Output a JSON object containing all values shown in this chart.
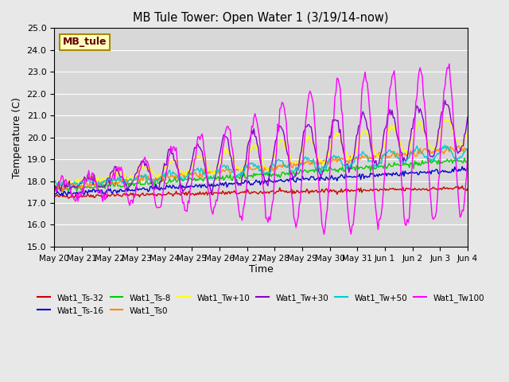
{
  "title": "MB Tule Tower: Open Water 1 (3/19/14-now)",
  "xlabel": "Time",
  "ylabel": "Temperature (C)",
  "ylim": [
    15.0,
    25.0
  ],
  "yticks": [
    15.0,
    16.0,
    17.0,
    18.0,
    19.0,
    20.0,
    21.0,
    22.0,
    23.0,
    24.0,
    25.0
  ],
  "background_color": "#e8e8e8",
  "plot_bg_color": "#d8d8d8",
  "legend_label": "MB_tule",
  "series_colors": {
    "Wat1_Ts-32": "#cc0000",
    "Wat1_Ts-16": "#0000cc",
    "Wat1_Ts-8": "#00cc00",
    "Wat1_Ts0": "#ff8800",
    "Wat1_Tw+10": "#ffff00",
    "Wat1_Tw+30": "#8800cc",
    "Wat1_Tw+50": "#00cccc",
    "Wat1_Tw100": "#ff00ff"
  },
  "x_tick_positions": [
    0,
    1,
    2,
    3,
    4,
    5,
    6,
    7,
    8,
    9,
    10,
    11,
    12,
    13,
    14,
    15
  ],
  "x_tick_labels": [
    "May 20",
    "May 21",
    "May 22",
    "May 23",
    "May 24",
    "May 25",
    "May 26",
    "May 27",
    "May 28",
    "May 29",
    "May 30",
    "May 31",
    "Jun 1",
    "Jun 2",
    "Jun 3",
    "Jun 4"
  ]
}
